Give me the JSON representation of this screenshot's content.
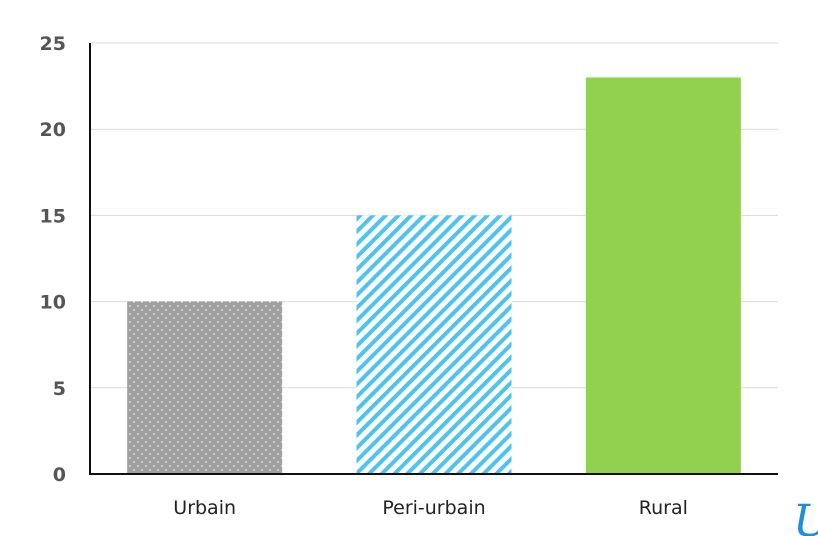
{
  "chart_data": {
    "type": "bar",
    "title": "",
    "xlabel": "",
    "ylabel": "",
    "categories": [
      "Urbain",
      "Peri-urbain",
      "Rural"
    ],
    "values": [
      10,
      15,
      23
    ],
    "ylim": [
      0,
      25
    ],
    "yticks": [
      0,
      5,
      10,
      15,
      20,
      25
    ],
    "grid": true,
    "legend": "none",
    "bar_styles": [
      {
        "fill": "#a0a0a0",
        "pattern": "dots",
        "pattern_color": "#ffffff"
      },
      {
        "fill": "#ffffff",
        "pattern": "diagonal-stripes",
        "pattern_color": "#4fc3f0"
      },
      {
        "fill": "#92d050",
        "pattern": "solid"
      }
    ],
    "colors": {
      "axis": "#111111",
      "grid": "#d9d9d9",
      "ytick_text": "#555555",
      "xtick_text": "#222222"
    }
  },
  "watermark": {
    "icon": "logo-u-icon",
    "text": "U",
    "color": "#1f8fd6"
  }
}
